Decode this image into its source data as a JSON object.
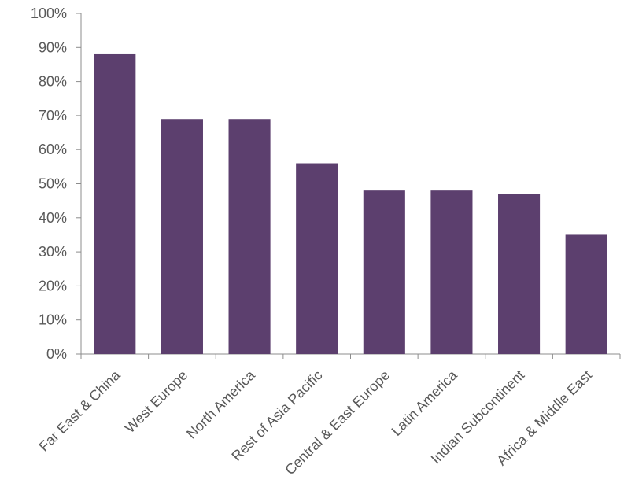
{
  "chart_data": {
    "type": "bar",
    "title": "",
    "xlabel": "",
    "ylabel": "",
    "categories": [
      "Far East & China",
      "West Europe",
      "North America",
      "Rest of Asia Pacific",
      "Central & East Europe",
      "Latin America",
      "Indian Subcontinent",
      "Africa & Middle East"
    ],
    "values": [
      88,
      69,
      69,
      56,
      48,
      48,
      47,
      35
    ],
    "ylim": [
      0,
      100
    ],
    "yticks": [
      0,
      10,
      20,
      30,
      40,
      50,
      60,
      70,
      80,
      90,
      100
    ],
    "ytick_labels": [
      "0%",
      "10%",
      "20%",
      "30%",
      "40%",
      "50%",
      "60%",
      "70%",
      "80%",
      "90%",
      "100%"
    ],
    "bar_color": "#5c3f6e",
    "grid": false,
    "legend": "none"
  }
}
